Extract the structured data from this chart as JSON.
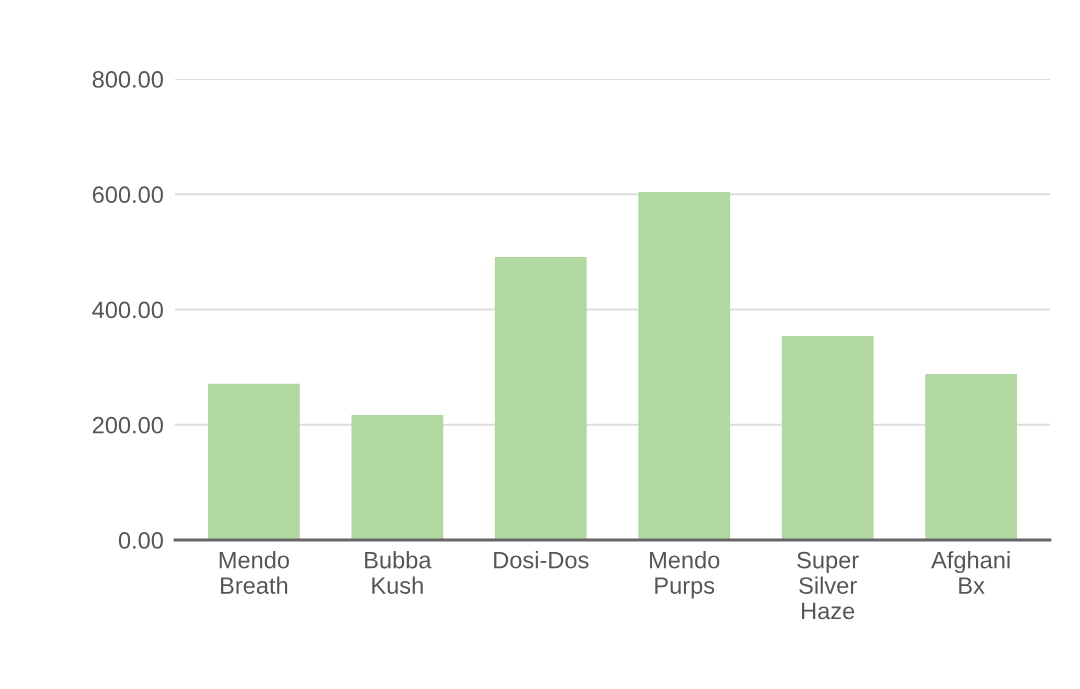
{
  "chart_data": {
    "type": "bar",
    "categories": [
      "Mendo Breath",
      "Bubba Kush",
      "Dosi-Dos",
      "Mendo Purps",
      "Super Silver Haze",
      "Afghani Bx"
    ],
    "values": [
      271,
      217,
      491,
      604,
      354,
      288
    ],
    "color": "#b2d8a2",
    "ylim": [
      0,
      800
    ],
    "yticks": [
      {
        "value": 0,
        "label": "0.00"
      },
      {
        "value": 200,
        "label": "200.00"
      },
      {
        "value": 400,
        "label": "400.00"
      },
      {
        "value": 600,
        "label": "600.00"
      },
      {
        "value": 800,
        "label": "800.00"
      }
    ],
    "grid": "y"
  }
}
